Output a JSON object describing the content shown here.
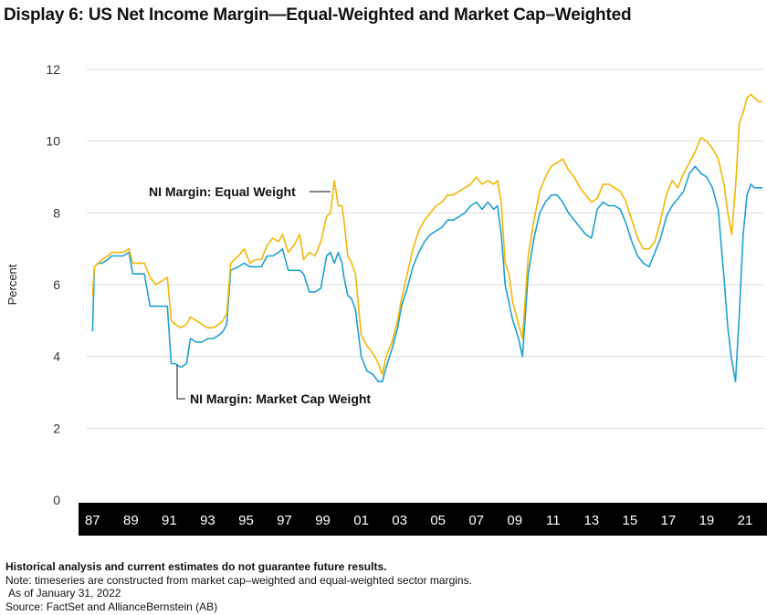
{
  "title": "Display 6: US Net Income Margin—Equal-Weighted and Market Cap–Weighted",
  "footnotes": {
    "disclaimer": "Historical analysis and current estimates do not guarantee future results.",
    "note": "Note: timeseries are constructed from market cap–weighted and equal-weighted sector margins.",
    "asof": "As of January 31, 2022",
    "source": "Source: FactSet and AllianceBernstein (AB)"
  },
  "chart_data": {
    "type": "line",
    "ylabel": "Percent",
    "xlabel": "",
    "ylim": [
      0,
      12
    ],
    "xlim": [
      1986.7,
      2022.0
    ],
    "yticks": [
      0,
      2,
      4,
      6,
      8,
      10,
      12
    ],
    "xtick_labels": [
      "87",
      "89",
      "91",
      "93",
      "95",
      "97",
      "99",
      "01",
      "03",
      "05",
      "07",
      "09",
      "11",
      "13",
      "15",
      "17",
      "19",
      "21"
    ],
    "grid": true,
    "colors": {
      "equal": "#f2b705",
      "cap": "#1fa0d2",
      "axis_band": "#000000"
    },
    "annotations": [
      {
        "text": "NI Margin: Equal Weight",
        "series": "equal"
      },
      {
        "text": "NI Margin: Market Cap Weight",
        "series": "cap"
      }
    ],
    "series": [
      {
        "name": "NI Margin: Equal Weight",
        "key": "equal",
        "x": [
          1987.0,
          1987.1,
          1987.3,
          1987.5,
          1987.8,
          1988.0,
          1988.3,
          1988.6,
          1988.9,
          1989.1,
          1989.4,
          1989.7,
          1990.0,
          1990.3,
          1990.6,
          1990.9,
          1991.1,
          1991.3,
          1991.6,
          1991.9,
          1992.1,
          1992.4,
          1992.7,
          1993.0,
          1993.3,
          1993.6,
          1993.8,
          1994.0,
          1994.2,
          1994.6,
          1994.9,
          1995.2,
          1995.5,
          1995.8,
          1996.1,
          1996.4,
          1996.7,
          1996.9,
          1997.2,
          1997.5,
          1997.8,
          1998.0,
          1998.3,
          1998.6,
          1998.9,
          1999.2,
          1999.4,
          1999.6,
          1999.8,
          2000.0,
          2000.1,
          2000.3,
          2000.5,
          2000.7,
          2001.0,
          2001.3,
          2001.6,
          2001.9,
          2002.1,
          2002.3,
          2002.6,
          2002.9,
          2003.1,
          2003.4,
          2003.7,
          2004.0,
          2004.3,
          2004.6,
          2004.9,
          2005.2,
          2005.5,
          2005.8,
          2006.1,
          2006.4,
          2006.7,
          2007.0,
          2007.3,
          2007.6,
          2007.9,
          2008.1,
          2008.3,
          2008.5,
          2008.7,
          2008.9,
          2009.2,
          2009.4,
          2009.7,
          2010.0,
          2010.3,
          2010.6,
          2010.9,
          2011.2,
          2011.5,
          2011.8,
          2012.1,
          2012.4,
          2012.7,
          2013.0,
          2013.3,
          2013.6,
          2013.9,
          2014.2,
          2014.5,
          2014.8,
          2015.1,
          2015.4,
          2015.7,
          2016.0,
          2016.3,
          2016.6,
          2016.9,
          2017.2,
          2017.5,
          2017.8,
          2018.1,
          2018.4,
          2018.7,
          2019.0,
          2019.3,
          2019.6,
          2019.9,
          2020.1,
          2020.3,
          2020.5,
          2020.7,
          2020.9,
          2021.1,
          2021.3,
          2021.5,
          2021.7,
          2021.9
        ],
        "values": [
          5.7,
          6.5,
          6.6,
          6.7,
          6.8,
          6.9,
          6.9,
          6.9,
          7.0,
          6.6,
          6.6,
          6.6,
          6.2,
          6.0,
          6.1,
          6.2,
          5.0,
          4.9,
          4.8,
          4.9,
          5.1,
          5.0,
          4.9,
          4.8,
          4.8,
          4.9,
          5.0,
          5.2,
          6.6,
          6.8,
          7.0,
          6.6,
          6.7,
          6.7,
          7.1,
          7.3,
          7.2,
          7.4,
          6.9,
          7.1,
          7.4,
          6.7,
          6.9,
          6.8,
          7.2,
          7.9,
          8.0,
          8.9,
          8.2,
          8.2,
          7.8,
          6.8,
          6.6,
          6.3,
          4.6,
          4.3,
          4.1,
          3.8,
          3.5,
          4.0,
          4.4,
          5.0,
          5.6,
          6.3,
          7.0,
          7.5,
          7.8,
          8.0,
          8.2,
          8.3,
          8.5,
          8.5,
          8.6,
          8.7,
          8.8,
          9.0,
          8.8,
          8.9,
          8.8,
          8.9,
          8.3,
          6.6,
          6.3,
          5.5,
          4.9,
          4.5,
          6.8,
          7.8,
          8.6,
          9.0,
          9.3,
          9.4,
          9.5,
          9.2,
          9.0,
          8.7,
          8.5,
          8.3,
          8.4,
          8.8,
          8.8,
          8.7,
          8.6,
          8.3,
          7.8,
          7.3,
          7.0,
          7.0,
          7.2,
          7.8,
          8.5,
          8.9,
          8.7,
          9.1,
          9.4,
          9.7,
          10.1,
          10.0,
          9.8,
          9.5,
          8.8,
          8.0,
          7.4,
          8.7,
          10.5,
          10.8,
          11.2,
          11.3,
          11.2,
          11.1,
          11.1
        ]
      },
      {
        "name": "NI Margin: Market Cap Weight",
        "key": "cap",
        "x": [
          1987.0,
          1987.1,
          1987.3,
          1987.5,
          1987.8,
          1988.0,
          1988.3,
          1988.6,
          1988.9,
          1989.1,
          1989.4,
          1989.7,
          1990.0,
          1990.3,
          1990.6,
          1990.9,
          1991.1,
          1991.3,
          1991.6,
          1991.9,
          1992.1,
          1992.4,
          1992.7,
          1993.0,
          1993.3,
          1993.6,
          1993.8,
          1994.0,
          1994.2,
          1994.6,
          1994.9,
          1995.2,
          1995.5,
          1995.8,
          1996.1,
          1996.4,
          1996.7,
          1996.9,
          1997.2,
          1997.5,
          1997.8,
          1998.0,
          1998.3,
          1998.6,
          1998.9,
          1999.2,
          1999.4,
          1999.6,
          1999.8,
          2000.0,
          2000.1,
          2000.3,
          2000.5,
          2000.7,
          2001.0,
          2001.3,
          2001.6,
          2001.9,
          2002.1,
          2002.3,
          2002.6,
          2002.9,
          2003.1,
          2003.4,
          2003.7,
          2004.0,
          2004.3,
          2004.6,
          2004.9,
          2005.2,
          2005.5,
          2005.8,
          2006.1,
          2006.4,
          2006.7,
          2007.0,
          2007.3,
          2007.6,
          2007.9,
          2008.1,
          2008.3,
          2008.5,
          2008.7,
          2008.9,
          2009.2,
          2009.4,
          2009.7,
          2010.0,
          2010.3,
          2010.6,
          2010.9,
          2011.2,
          2011.5,
          2011.8,
          2012.1,
          2012.4,
          2012.7,
          2013.0,
          2013.3,
          2013.6,
          2013.9,
          2014.2,
          2014.5,
          2014.8,
          2015.1,
          2015.4,
          2015.7,
          2016.0,
          2016.3,
          2016.6,
          2016.9,
          2017.2,
          2017.5,
          2017.8,
          2018.1,
          2018.4,
          2018.7,
          2019.0,
          2019.3,
          2019.6,
          2019.9,
          2020.1,
          2020.3,
          2020.5,
          2020.7,
          2020.9,
          2021.1,
          2021.3,
          2021.5,
          2021.7,
          2021.9
        ],
        "values": [
          4.7,
          6.5,
          6.6,
          6.6,
          6.7,
          6.8,
          6.8,
          6.8,
          6.9,
          6.3,
          6.3,
          6.3,
          5.4,
          5.4,
          5.4,
          5.4,
          3.8,
          3.8,
          3.7,
          3.8,
          4.5,
          4.4,
          4.4,
          4.5,
          4.5,
          4.6,
          4.7,
          4.9,
          6.4,
          6.5,
          6.6,
          6.5,
          6.5,
          6.5,
          6.8,
          6.8,
          6.9,
          7.0,
          6.4,
          6.4,
          6.4,
          6.3,
          5.8,
          5.8,
          5.9,
          6.8,
          6.9,
          6.6,
          6.9,
          6.6,
          6.2,
          5.7,
          5.6,
          5.3,
          4.0,
          3.6,
          3.5,
          3.3,
          3.3,
          3.7,
          4.2,
          4.8,
          5.4,
          5.9,
          6.5,
          6.9,
          7.2,
          7.4,
          7.5,
          7.6,
          7.8,
          7.8,
          7.9,
          8.0,
          8.2,
          8.3,
          8.1,
          8.3,
          8.1,
          8.2,
          7.4,
          6.0,
          5.5,
          5.0,
          4.5,
          4.0,
          6.3,
          7.3,
          8.0,
          8.3,
          8.5,
          8.5,
          8.3,
          8.0,
          7.8,
          7.6,
          7.4,
          7.3,
          8.1,
          8.3,
          8.2,
          8.2,
          8.1,
          7.7,
          7.2,
          6.8,
          6.6,
          6.5,
          6.9,
          7.3,
          7.9,
          8.2,
          8.4,
          8.6,
          9.1,
          9.3,
          9.1,
          9.0,
          8.7,
          8.1,
          6.2,
          4.8,
          3.9,
          3.3,
          5.2,
          7.4,
          8.5,
          8.8,
          8.7,
          8.7,
          8.7
        ]
      }
    ]
  }
}
